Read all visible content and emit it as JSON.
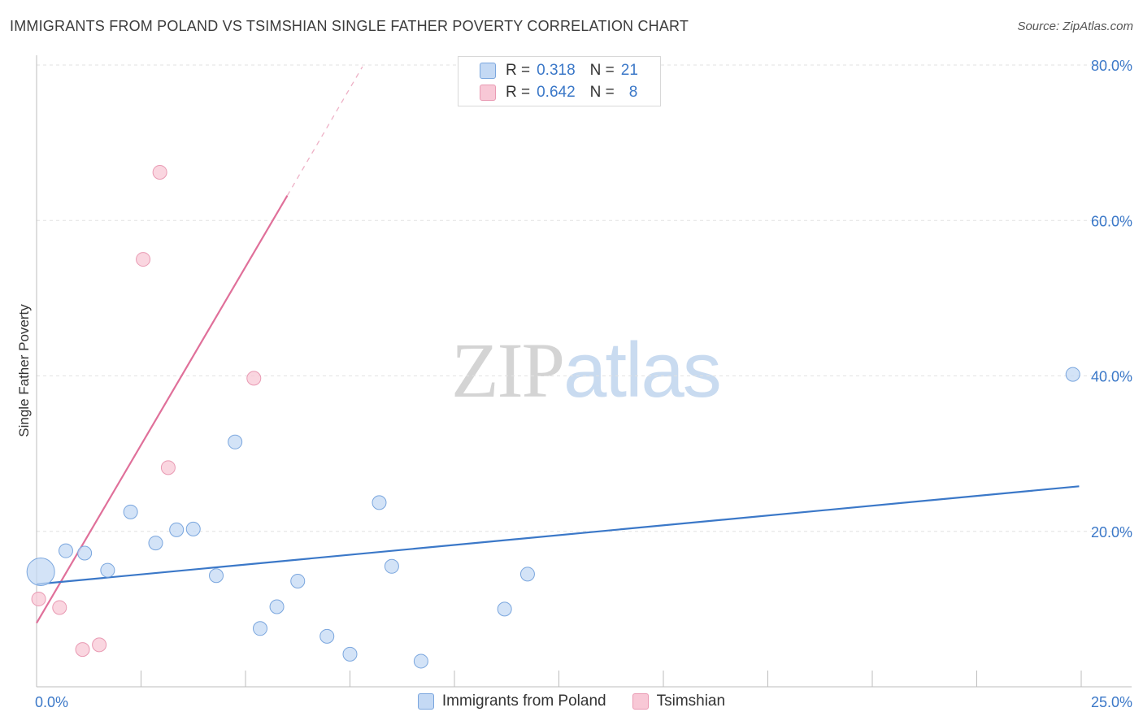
{
  "title": "IMMIGRANTS FROM POLAND VS TSIMSHIAN SINGLE FATHER POVERTY CORRELATION CHART",
  "source": "Source: ZipAtlas.com",
  "watermark": {
    "zip": "ZIP",
    "atlas": "atlas"
  },
  "legend_top": {
    "rows": [
      {
        "r_label": "R =",
        "r_value": "0.318",
        "n_label": "N =",
        "n_value": "21"
      },
      {
        "r_label": "R =",
        "r_value": "0.642",
        "n_label": "N =",
        "n_value": "8"
      }
    ]
  },
  "chart_data": {
    "type": "scatter",
    "title": "IMMIGRANTS FROM POLAND VS TSIMSHIAN SINGLE FATHER POVERTY CORRELATION CHART",
    "xlabel": "",
    "ylabel": "Single Father Poverty",
    "xlim": [
      0,
      25
    ],
    "ylim": [
      0,
      80
    ],
    "x_tick_labels": [
      "0.0%",
      "25.0%"
    ],
    "y_ticks": [
      20,
      40,
      60,
      80
    ],
    "y_tick_labels": [
      "20.0%",
      "40.0%",
      "60.0%",
      "80.0%"
    ],
    "grid": true,
    "legend_position": "bottom",
    "colors": {
      "poland": "#3b78c8",
      "poland_fill": "#c4d9f4",
      "tsimshian": "#e0709a",
      "tsimshian_fill": "#f8c8d6"
    },
    "series": [
      {
        "name": "Immigrants from Poland",
        "points": [
          {
            "x": 0.1,
            "y": 14.8,
            "big": true
          },
          {
            "x": 0.7,
            "y": 17.5
          },
          {
            "x": 1.15,
            "y": 17.2
          },
          {
            "x": 1.7,
            "y": 15.0
          },
          {
            "x": 2.25,
            "y": 22.5
          },
          {
            "x": 2.85,
            "y": 18.5
          },
          {
            "x": 3.35,
            "y": 20.2
          },
          {
            "x": 3.75,
            "y": 20.3
          },
          {
            "x": 4.3,
            "y": 14.3
          },
          {
            "x": 4.75,
            "y": 31.5
          },
          {
            "x": 5.35,
            "y": 7.5
          },
          {
            "x": 5.75,
            "y": 10.3
          },
          {
            "x": 6.25,
            "y": 13.6
          },
          {
            "x": 6.95,
            "y": 6.5
          },
          {
            "x": 7.5,
            "y": 4.2
          },
          {
            "x": 8.2,
            "y": 23.7
          },
          {
            "x": 8.5,
            "y": 15.5
          },
          {
            "x": 9.2,
            "y": 3.3
          },
          {
            "x": 11.2,
            "y": 10.0
          },
          {
            "x": 11.75,
            "y": 14.5
          },
          {
            "x": 24.8,
            "y": 40.2
          }
        ],
        "trend": {
          "x0": 0,
          "y0": 13.2,
          "x1": 24.95,
          "y1": 25.8
        }
      },
      {
        "name": "Tsimshian",
        "points": [
          {
            "x": 0.05,
            "y": 11.3
          },
          {
            "x": 0.55,
            "y": 10.2
          },
          {
            "x": 1.1,
            "y": 4.8
          },
          {
            "x": 1.5,
            "y": 5.4
          },
          {
            "x": 2.55,
            "y": 55.0
          },
          {
            "x": 2.95,
            "y": 66.2
          },
          {
            "x": 3.15,
            "y": 28.2
          },
          {
            "x": 5.2,
            "y": 39.7
          }
        ],
        "trend": {
          "x0": 0,
          "y0": 8.2,
          "x1": 6.0,
          "y1": 63.2,
          "dash_x1": 7.8,
          "dash_y1": 79.8
        }
      }
    ]
  }
}
